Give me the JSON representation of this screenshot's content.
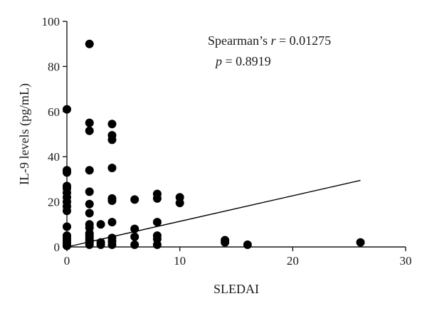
{
  "chart_data": {
    "type": "scatter",
    "xlabel": "SLEDAI",
    "ylabel": "IL-9 levels (pg/mL)",
    "xlim": [
      0,
      30
    ],
    "ylim": [
      0,
      100
    ],
    "xticks": [
      0,
      10,
      20,
      30
    ],
    "yticks": [
      0,
      20,
      40,
      60,
      80,
      100
    ],
    "grid": false,
    "annotation": {
      "stat_prefix": "Spearman’s ",
      "stat_symbol": "r",
      "stat_value": " = 0.01275",
      "p_symbol": "p",
      "p_value": " = 0.8919"
    },
    "fit_line": {
      "x": [
        0,
        26
      ],
      "y": [
        0,
        29.5
      ]
    },
    "series": [
      {
        "marker_color": "#000000",
        "points": [
          [
            0,
            61
          ],
          [
            0,
            34
          ],
          [
            0,
            33
          ],
          [
            0,
            27
          ],
          [
            0,
            26
          ],
          [
            0,
            24
          ],
          [
            0,
            22
          ],
          [
            0,
            20
          ],
          [
            0,
            18
          ],
          [
            0,
            16
          ],
          [
            0,
            9
          ],
          [
            0,
            5
          ],
          [
            0,
            4
          ],
          [
            0,
            3
          ],
          [
            0,
            2
          ],
          [
            0,
            1
          ],
          [
            0,
            0.5
          ],
          [
            2,
            90
          ],
          [
            2,
            55
          ],
          [
            2,
            51.5
          ],
          [
            2,
            34
          ],
          [
            2,
            24.5
          ],
          [
            2,
            19
          ],
          [
            2,
            15
          ],
          [
            2,
            10
          ],
          [
            2,
            8.5
          ],
          [
            2,
            6
          ],
          [
            2,
            5
          ],
          [
            2,
            4
          ],
          [
            2,
            3
          ],
          [
            2,
            2
          ],
          [
            2,
            1
          ],
          [
            3,
            10
          ],
          [
            3,
            2
          ],
          [
            3,
            1
          ],
          [
            4,
            54.5
          ],
          [
            4,
            49.5
          ],
          [
            4,
            47.5
          ],
          [
            4,
            35
          ],
          [
            4,
            21.5
          ],
          [
            4,
            20.5
          ],
          [
            4,
            11
          ],
          [
            4,
            4
          ],
          [
            4,
            2.5
          ],
          [
            4,
            1
          ],
          [
            6,
            21
          ],
          [
            6,
            8
          ],
          [
            6,
            4.5
          ],
          [
            6,
            1
          ],
          [
            8,
            23.5
          ],
          [
            8,
            21.5
          ],
          [
            8,
            11
          ],
          [
            8,
            5
          ],
          [
            8,
            3.5
          ],
          [
            8,
            1
          ],
          [
            10,
            22
          ],
          [
            10,
            19.5
          ],
          [
            14,
            3
          ],
          [
            14,
            2
          ],
          [
            16,
            1
          ],
          [
            26,
            2
          ]
        ]
      }
    ]
  }
}
